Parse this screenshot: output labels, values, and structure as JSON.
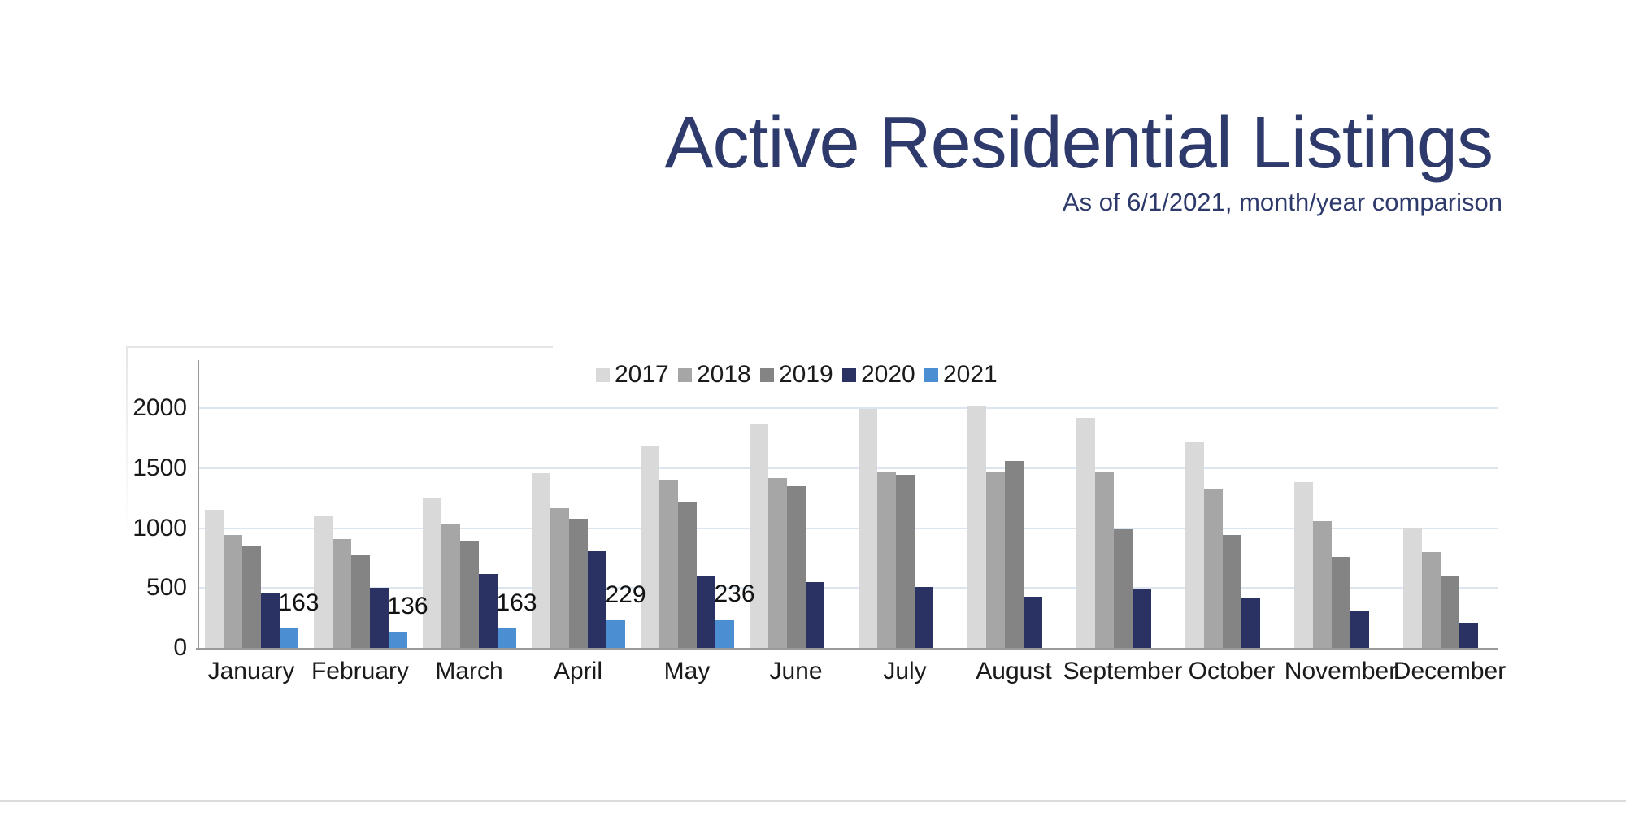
{
  "title": "Active Residential Listings",
  "subtitle": "As of 6/1/2021, month/year comparison",
  "colors": {
    "title_text": "#2D3A6B",
    "axis_line": "#9a9a9a",
    "gridline": "#dde6ee",
    "tick_text": "#1a1a1a"
  },
  "chart_data": {
    "type": "bar",
    "title": "Active Residential Listings",
    "subtitle": "As of 6/1/2021, month/year comparison",
    "categories": [
      "January",
      "February",
      "March",
      "April",
      "May",
      "June",
      "July",
      "August",
      "September",
      "October",
      "November",
      "December"
    ],
    "series": [
      {
        "name": "2017",
        "color": "#D9D9D9",
        "values": [
          1150,
          1100,
          1250,
          1460,
          1690,
          1870,
          1990,
          2020,
          1920,
          1715,
          1380,
          1005
        ]
      },
      {
        "name": "2018",
        "color": "#A6A6A6",
        "values": [
          940,
          910,
          1030,
          1165,
          1400,
          1420,
          1470,
          1470,
          1470,
          1330,
          1055,
          800
        ]
      },
      {
        "name": "2019",
        "color": "#848484",
        "values": [
          855,
          775,
          890,
          1075,
          1220,
          1350,
          1445,
          1560,
          990,
          940,
          760,
          595
        ]
      },
      {
        "name": "2020",
        "color": "#2A3263",
        "values": [
          460,
          505,
          620,
          805,
          595,
          550,
          510,
          430,
          490,
          420,
          310,
          210
        ]
      },
      {
        "name": "2021",
        "color": "#4B8FD2",
        "values": [
          163,
          136,
          163,
          229,
          236,
          null,
          null,
          null,
          null,
          null,
          null,
          null
        ]
      }
    ],
    "data_labels": {
      "series": "2021",
      "values": [
        "163",
        "136",
        "163",
        "229",
        "236"
      ]
    },
    "y_axis": {
      "ticks": [
        0,
        500,
        1000,
        1500,
        2000
      ],
      "max": 2400
    },
    "grid": "horizontal",
    "legend_position": "top-center"
  }
}
